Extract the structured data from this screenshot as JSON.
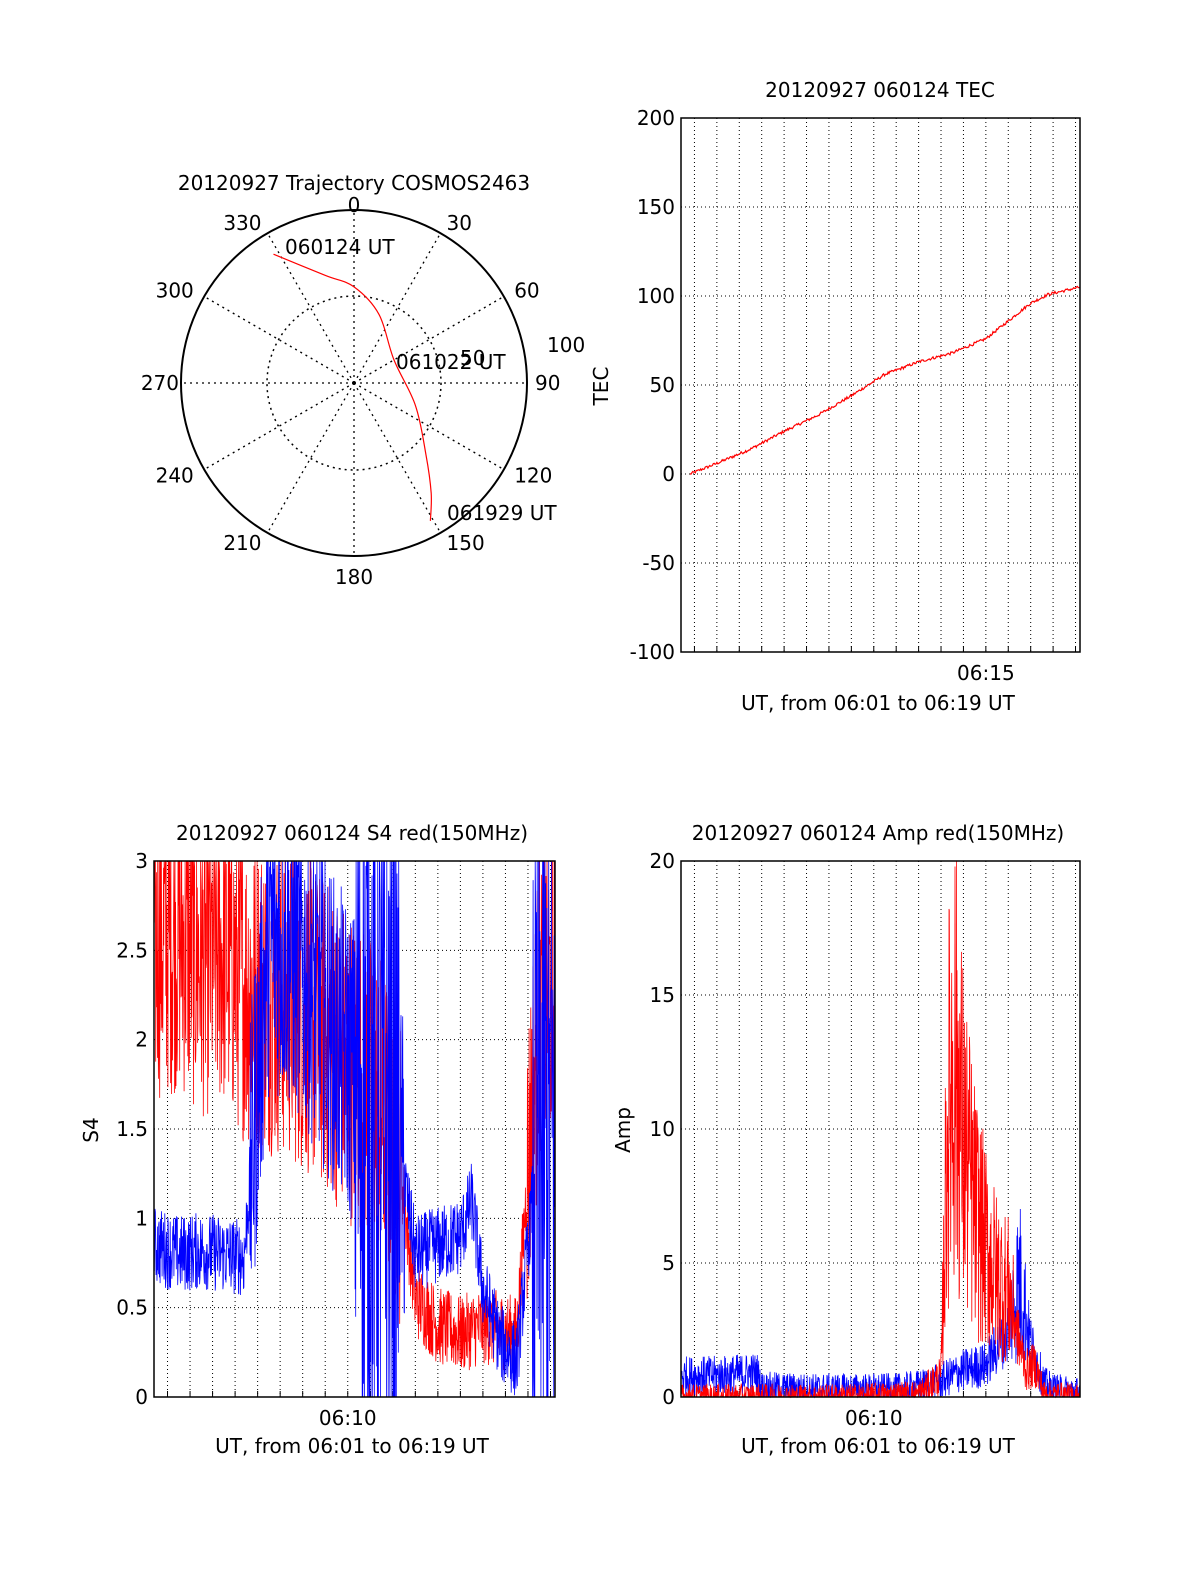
{
  "colors": {
    "red": "#ff0000",
    "blue": "#0000ff",
    "axis": "#000000",
    "grid": "#000000"
  },
  "chart_data": [
    {
      "id": "polar",
      "type": "polar-trajectory",
      "title": "20120927 Trajectory COSMOS2463",
      "azimuth_labels": [
        "0",
        "30",
        "60",
        "90",
        "120",
        "150",
        "180",
        "210",
        "240",
        "270",
        "300",
        "330"
      ],
      "radial_labels": [
        "50",
        "100"
      ],
      "track": [
        {
          "az": 328,
          "zd": 79,
          "label": "060124 UT"
        },
        {
          "az": 345,
          "zd": 58
        },
        {
          "az": 0,
          "zd": 50
        },
        {
          "az": 20,
          "zd": 38
        },
        {
          "az": 60,
          "zd": 24
        },
        {
          "az": 110,
          "zd": 34,
          "label": "061022 UT"
        },
        {
          "az": 135,
          "zd": 53
        },
        {
          "az": 145,
          "zd": 70
        },
        {
          "az": 151,
          "zd": 82,
          "label": "061929 UT"
        }
      ]
    },
    {
      "id": "tec",
      "type": "line",
      "title": "20120927 060124 TEC",
      "xlabel": "UT, from 06:01 to 06:19 UT",
      "ylabel": "TEC",
      "x_range_minutes": [
        6.4,
        24.2
      ],
      "ylim": [
        -100,
        200
      ],
      "yticks": [
        -100,
        -50,
        0,
        50,
        100,
        150,
        200
      ],
      "xtick_labels": [
        {
          "t": 20,
          "label": "06:15"
        }
      ],
      "series": [
        {
          "color": "red",
          "x": [
            6.8,
            8,
            9.5,
            11,
            12.5,
            14,
            15.5,
            17,
            18.5,
            20,
            21,
            22,
            22.8,
            23.5,
            24.2
          ],
          "y": [
            0,
            6,
            14,
            24,
            33,
            44,
            56,
            63,
            68,
            76,
            86,
            96,
            101,
            103,
            105
          ]
        }
      ]
    },
    {
      "id": "s4",
      "type": "line",
      "title": "20120927 060124 S4 red(150MHz)",
      "xlabel": "UT, from 06:01 to 06:19 UT",
      "ylabel": "S4",
      "x_range_minutes": [
        6.4,
        24.2
      ],
      "ylim": [
        0,
        3
      ],
      "yticks": [
        0,
        0.5,
        1,
        1.5,
        2,
        2.5,
        3
      ],
      "ytick_labels": [
        "0",
        "0.5",
        "1",
        "1.5",
        "2",
        "2.5",
        "3"
      ],
      "xtick_labels": [
        {
          "t": 15,
          "label": "06:10"
        }
      ],
      "series": [
        {
          "color": "red",
          "x": [
            6.4,
            7.5,
            8.5,
            9.5,
            10.5,
            11.5,
            12.5,
            13.5,
            14.5,
            15.5,
            16.5,
            17.3,
            18,
            19,
            20,
            21,
            22.5,
            23.5,
            24.2
          ],
          "y": [
            2.55,
            2.6,
            2.45,
            2.5,
            2.3,
            2.25,
            2.2,
            2.1,
            1.95,
            1.8,
            1.6,
            1.3,
            0.55,
            0.4,
            0.35,
            0.4,
            0.35,
            2.2,
            2.3
          ]
        },
        {
          "color": "blue",
          "x": [
            6.4,
            7.5,
            8.5,
            9.5,
            10.4,
            11.5,
            12.5,
            13.5,
            14.5,
            15.5,
            16.5,
            17.3,
            18,
            19,
            20,
            20.5,
            21,
            21.8,
            22.5,
            23.5,
            24.2
          ],
          "y": [
            0.85,
            0.8,
            0.82,
            0.8,
            0.78,
            2.6,
            2.5,
            2.3,
            2.0,
            1.8,
            1.6,
            1.4,
            0.8,
            0.85,
            0.9,
            1.1,
            0.6,
            0.3,
            0.2,
            1.5,
            1.5
          ]
        }
      ]
    },
    {
      "id": "amp",
      "type": "line",
      "title": "20120927 060124 Amp red(150MHz)",
      "xlabel": "UT, from 06:01 to 06:19 UT",
      "ylabel": "Amp",
      "x_range_minutes": [
        6.4,
        24.2
      ],
      "ylim": [
        0,
        20
      ],
      "yticks": [
        0,
        5,
        10,
        15,
        20
      ],
      "xtick_labels": [
        {
          "t": 15,
          "label": "06:10"
        }
      ],
      "series": [
        {
          "color": "blue",
          "x": [
            6.4,
            8,
            9.8,
            10,
            12,
            14,
            15,
            16,
            17,
            18,
            19,
            20,
            21,
            21.5,
            22,
            22.6,
            23,
            24.2
          ],
          "y": [
            0.8,
            0.8,
            0.9,
            0.35,
            0.3,
            0.3,
            0.3,
            0.3,
            0.4,
            0.6,
            1.0,
            1.2,
            2.5,
            4.5,
            2.0,
            0.5,
            0.3,
            0.2
          ]
        },
        {
          "color": "red",
          "x": [
            6.4,
            10,
            14,
            17,
            18,
            18.3,
            18.6,
            19,
            19.5,
            20,
            20.5,
            21,
            21.5,
            21.8,
            22.2,
            22.6,
            24.2
          ],
          "y": [
            0,
            0,
            0,
            0.1,
            0.8,
            10.5,
            13,
            9.5,
            7,
            5.5,
            4.5,
            4,
            2,
            1.0,
            1.2,
            0.1,
            0
          ]
        }
      ]
    }
  ]
}
